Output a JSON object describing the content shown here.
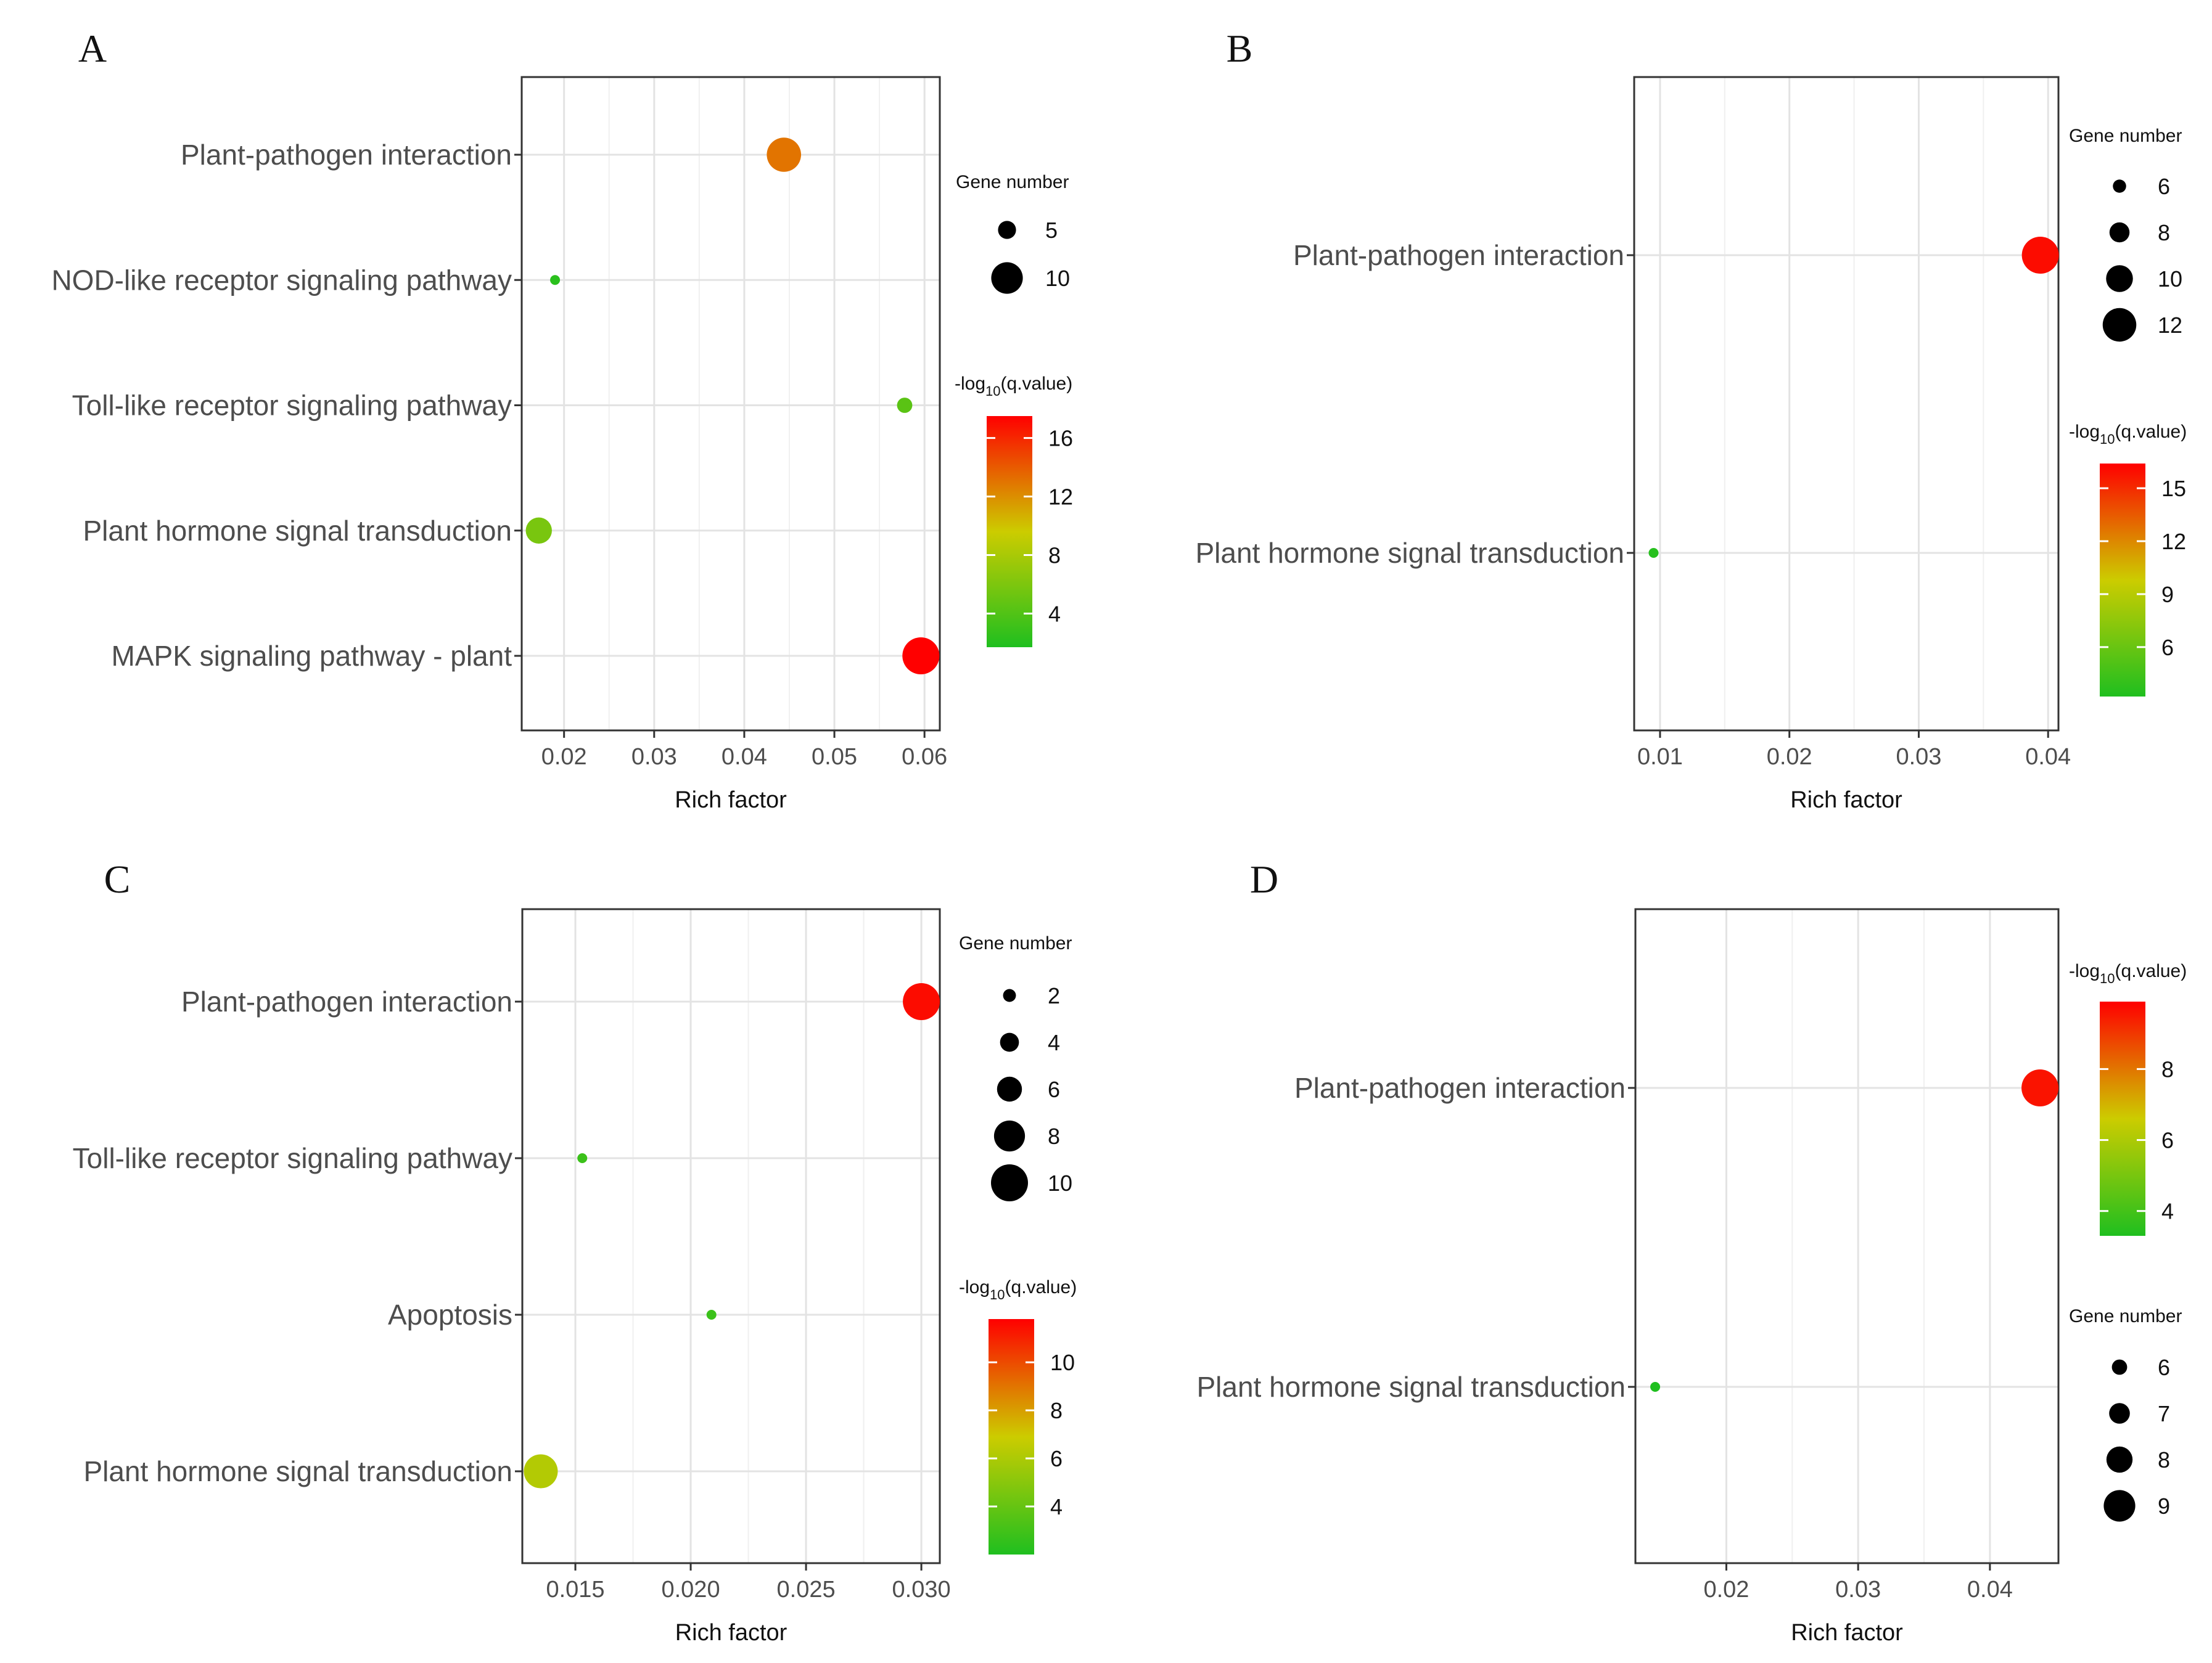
{
  "chart_data": [
    {
      "panel": "A",
      "type": "scatter",
      "xlabel": "Rich factor",
      "categories": [
        "Plant-pathogen interaction",
        "NOD-like receptor signaling pathway",
        "Toll-like receptor signaling pathway",
        "Plant hormone signal transduction",
        "MAPK signaling pathway - plant"
      ],
      "points": [
        {
          "category": "Plant-pathogen interaction",
          "x": 0.0444,
          "q": 13.0,
          "n": 11
        },
        {
          "category": "NOD-like receptor signaling pathway",
          "x": 0.019,
          "q": 2.2,
          "n": 2
        },
        {
          "category": "Toll-like receptor signaling pathway",
          "x": 0.0578,
          "q": 4.4,
          "n": 4
        },
        {
          "category": "Plant hormone signal transduction",
          "x": 0.0172,
          "q": 5.8,
          "n": 8
        },
        {
          "category": "MAPK signaling pathway - plant",
          "x": 0.0596,
          "q": 17.5,
          "n": 12
        }
      ],
      "xlim": [
        0.0153,
        0.0617
      ],
      "xticks": [
        0.02,
        0.03,
        0.04,
        0.05,
        0.06
      ],
      "xtick_labels": [
        "0.02",
        "0.03",
        "0.04",
        "0.05",
        "0.06"
      ],
      "size_legend": {
        "title": "Gene number",
        "values": [
          5,
          10
        ],
        "labels": [
          "5",
          "10"
        ]
      },
      "color_legend": {
        "title": "-log10(q.value)",
        "range": [
          1.7,
          17.5
        ],
        "ticks": [
          4,
          8,
          12,
          16
        ],
        "tick_labels": [
          "4",
          "8",
          "12",
          "16"
        ]
      }
    },
    {
      "panel": "B",
      "type": "scatter",
      "xlabel": "Rich factor",
      "categories": [
        "Plant-pathogen interaction",
        "Plant hormone signal transduction"
      ],
      "points": [
        {
          "category": "Plant-pathogen interaction",
          "x": 0.0394,
          "q": 16.0,
          "n": 13
        },
        {
          "category": "Plant hormone signal transduction",
          "x": 0.0095,
          "q": 3.5,
          "n": 5
        }
      ],
      "xlim": [
        0.008,
        0.0408
      ],
      "xticks": [
        0.01,
        0.02,
        0.03,
        0.04
      ],
      "xtick_labels": [
        "0.01",
        "0.02",
        "0.03",
        "0.04"
      ],
      "size_legend": {
        "title": "Gene number",
        "values": [
          6,
          8,
          10,
          12
        ],
        "labels": [
          "6",
          "8",
          "10",
          "12"
        ]
      },
      "color_legend": {
        "title": "-log10(q.value)",
        "range": [
          3.2,
          16.4
        ],
        "ticks": [
          6,
          9,
          12,
          15
        ],
        "tick_labels": [
          "6",
          "9",
          "12",
          "15"
        ]
      }
    },
    {
      "panel": "C",
      "type": "scatter",
      "xlabel": "Rich factor",
      "categories": [
        "Plant-pathogen interaction",
        "Toll-like receptor signaling pathway",
        "Apoptosis",
        "Plant hormone signal transduction"
      ],
      "points": [
        {
          "category": "Plant-pathogen interaction",
          "x": 0.03,
          "q": 11.5,
          "n": 10
        },
        {
          "category": "Toll-like receptor signaling pathway",
          "x": 0.0153,
          "q": 2.8,
          "n": 1
        },
        {
          "category": "Apoptosis",
          "x": 0.0209,
          "q": 2.8,
          "n": 1
        },
        {
          "category": "Plant hormone signal transduction",
          "x": 0.0135,
          "q": 6.2,
          "n": 9
        }
      ],
      "xlim": [
        0.0127,
        0.0308
      ],
      "xticks": [
        0.015,
        0.02,
        0.025,
        0.03
      ],
      "xtick_labels": [
        "0.015",
        "0.020",
        "0.025",
        "0.030"
      ],
      "size_legend": {
        "title": "Gene number",
        "values": [
          2,
          4,
          6,
          8,
          10
        ],
        "labels": [
          "2",
          "4",
          "6",
          "8",
          "10"
        ]
      },
      "color_legend": {
        "title": "-log10(q.value)",
        "range": [
          2.0,
          11.8
        ],
        "ticks": [
          4,
          6,
          8,
          10
        ],
        "tick_labels": [
          "4",
          "6",
          "8",
          "10"
        ]
      }
    },
    {
      "panel": "D",
      "type": "scatter",
      "xlabel": "Rich factor",
      "categories": [
        "Plant-pathogen interaction",
        "Plant hormone signal transduction"
      ],
      "points": [
        {
          "category": "Plant-pathogen interaction",
          "x": 0.0438,
          "q": 9.6,
          "n": 10
        },
        {
          "category": "Plant hormone signal transduction",
          "x": 0.0146,
          "q": 3.3,
          "n": 5
        }
      ],
      "xlim": [
        0.0131,
        0.0452
      ],
      "xticks": [
        0.02,
        0.03,
        0.04
      ],
      "xtick_labels": [
        "0.02",
        "0.03",
        "0.04"
      ],
      "size_legend": {
        "title": "Gene number",
        "values": [
          6,
          7,
          8,
          9
        ],
        "labels": [
          "6",
          "7",
          "8",
          "9"
        ]
      },
      "color_legend": {
        "title": "-log10(q.value)",
        "range": [
          3.3,
          9.9
        ],
        "ticks": [
          4,
          6,
          8
        ],
        "tick_labels": [
          "4",
          "6",
          "8"
        ]
      }
    }
  ],
  "colors": {
    "low": "#1fbf1f",
    "mid": "#cccc00",
    "high": "#ff0000"
  }
}
